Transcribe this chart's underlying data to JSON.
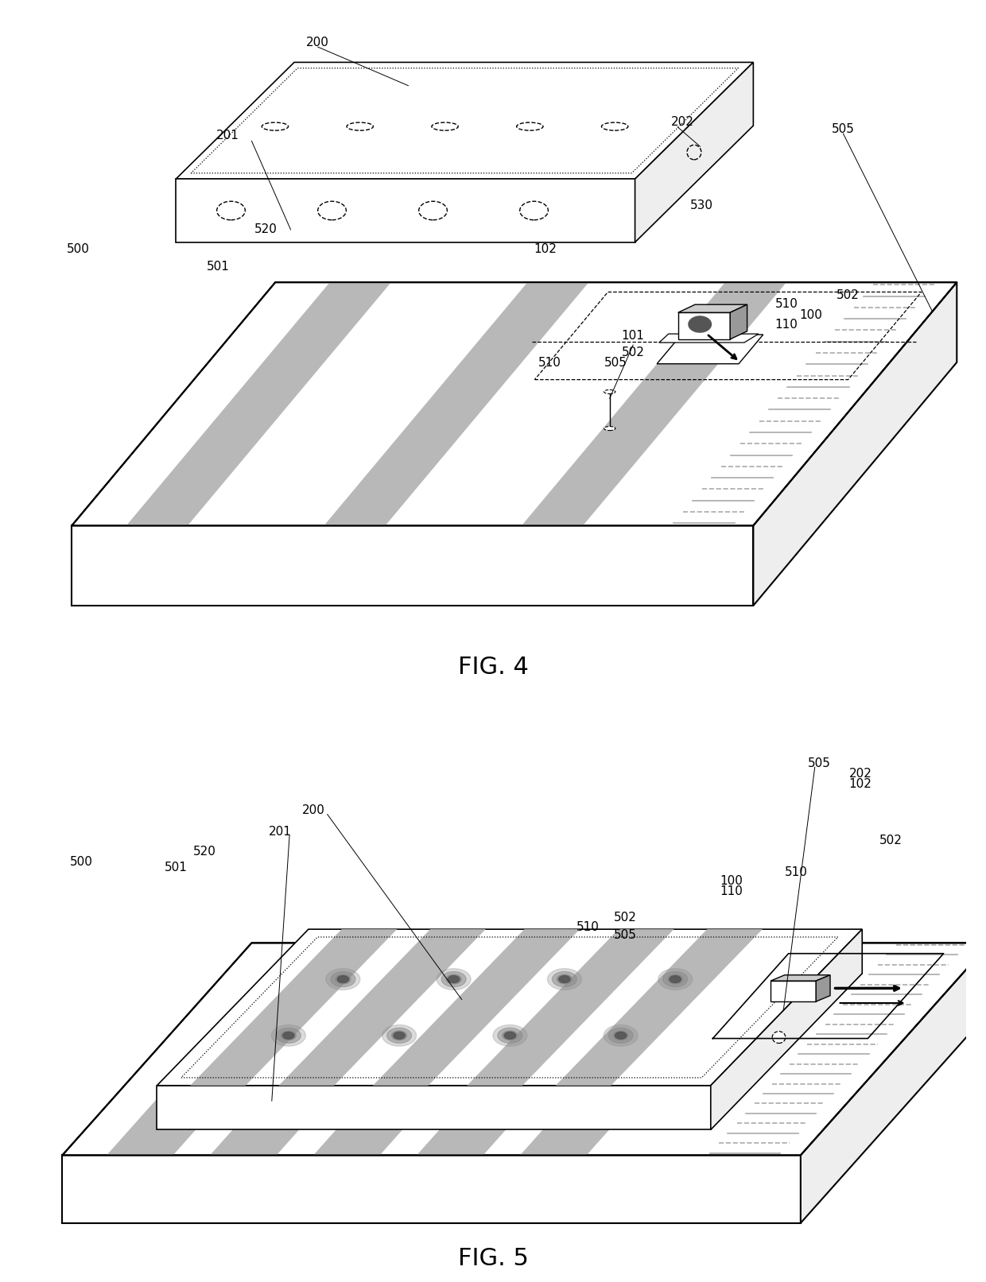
{
  "fig4_title": "FIG. 4",
  "fig5_title": "FIG. 5",
  "bg_color": "#ffffff",
  "line_color": "#000000",
  "gray_stripe": "#b8b8b8",
  "gray_light": "#eeeeee",
  "gray_mid": "#cccccc",
  "gray_dark": "#999999"
}
